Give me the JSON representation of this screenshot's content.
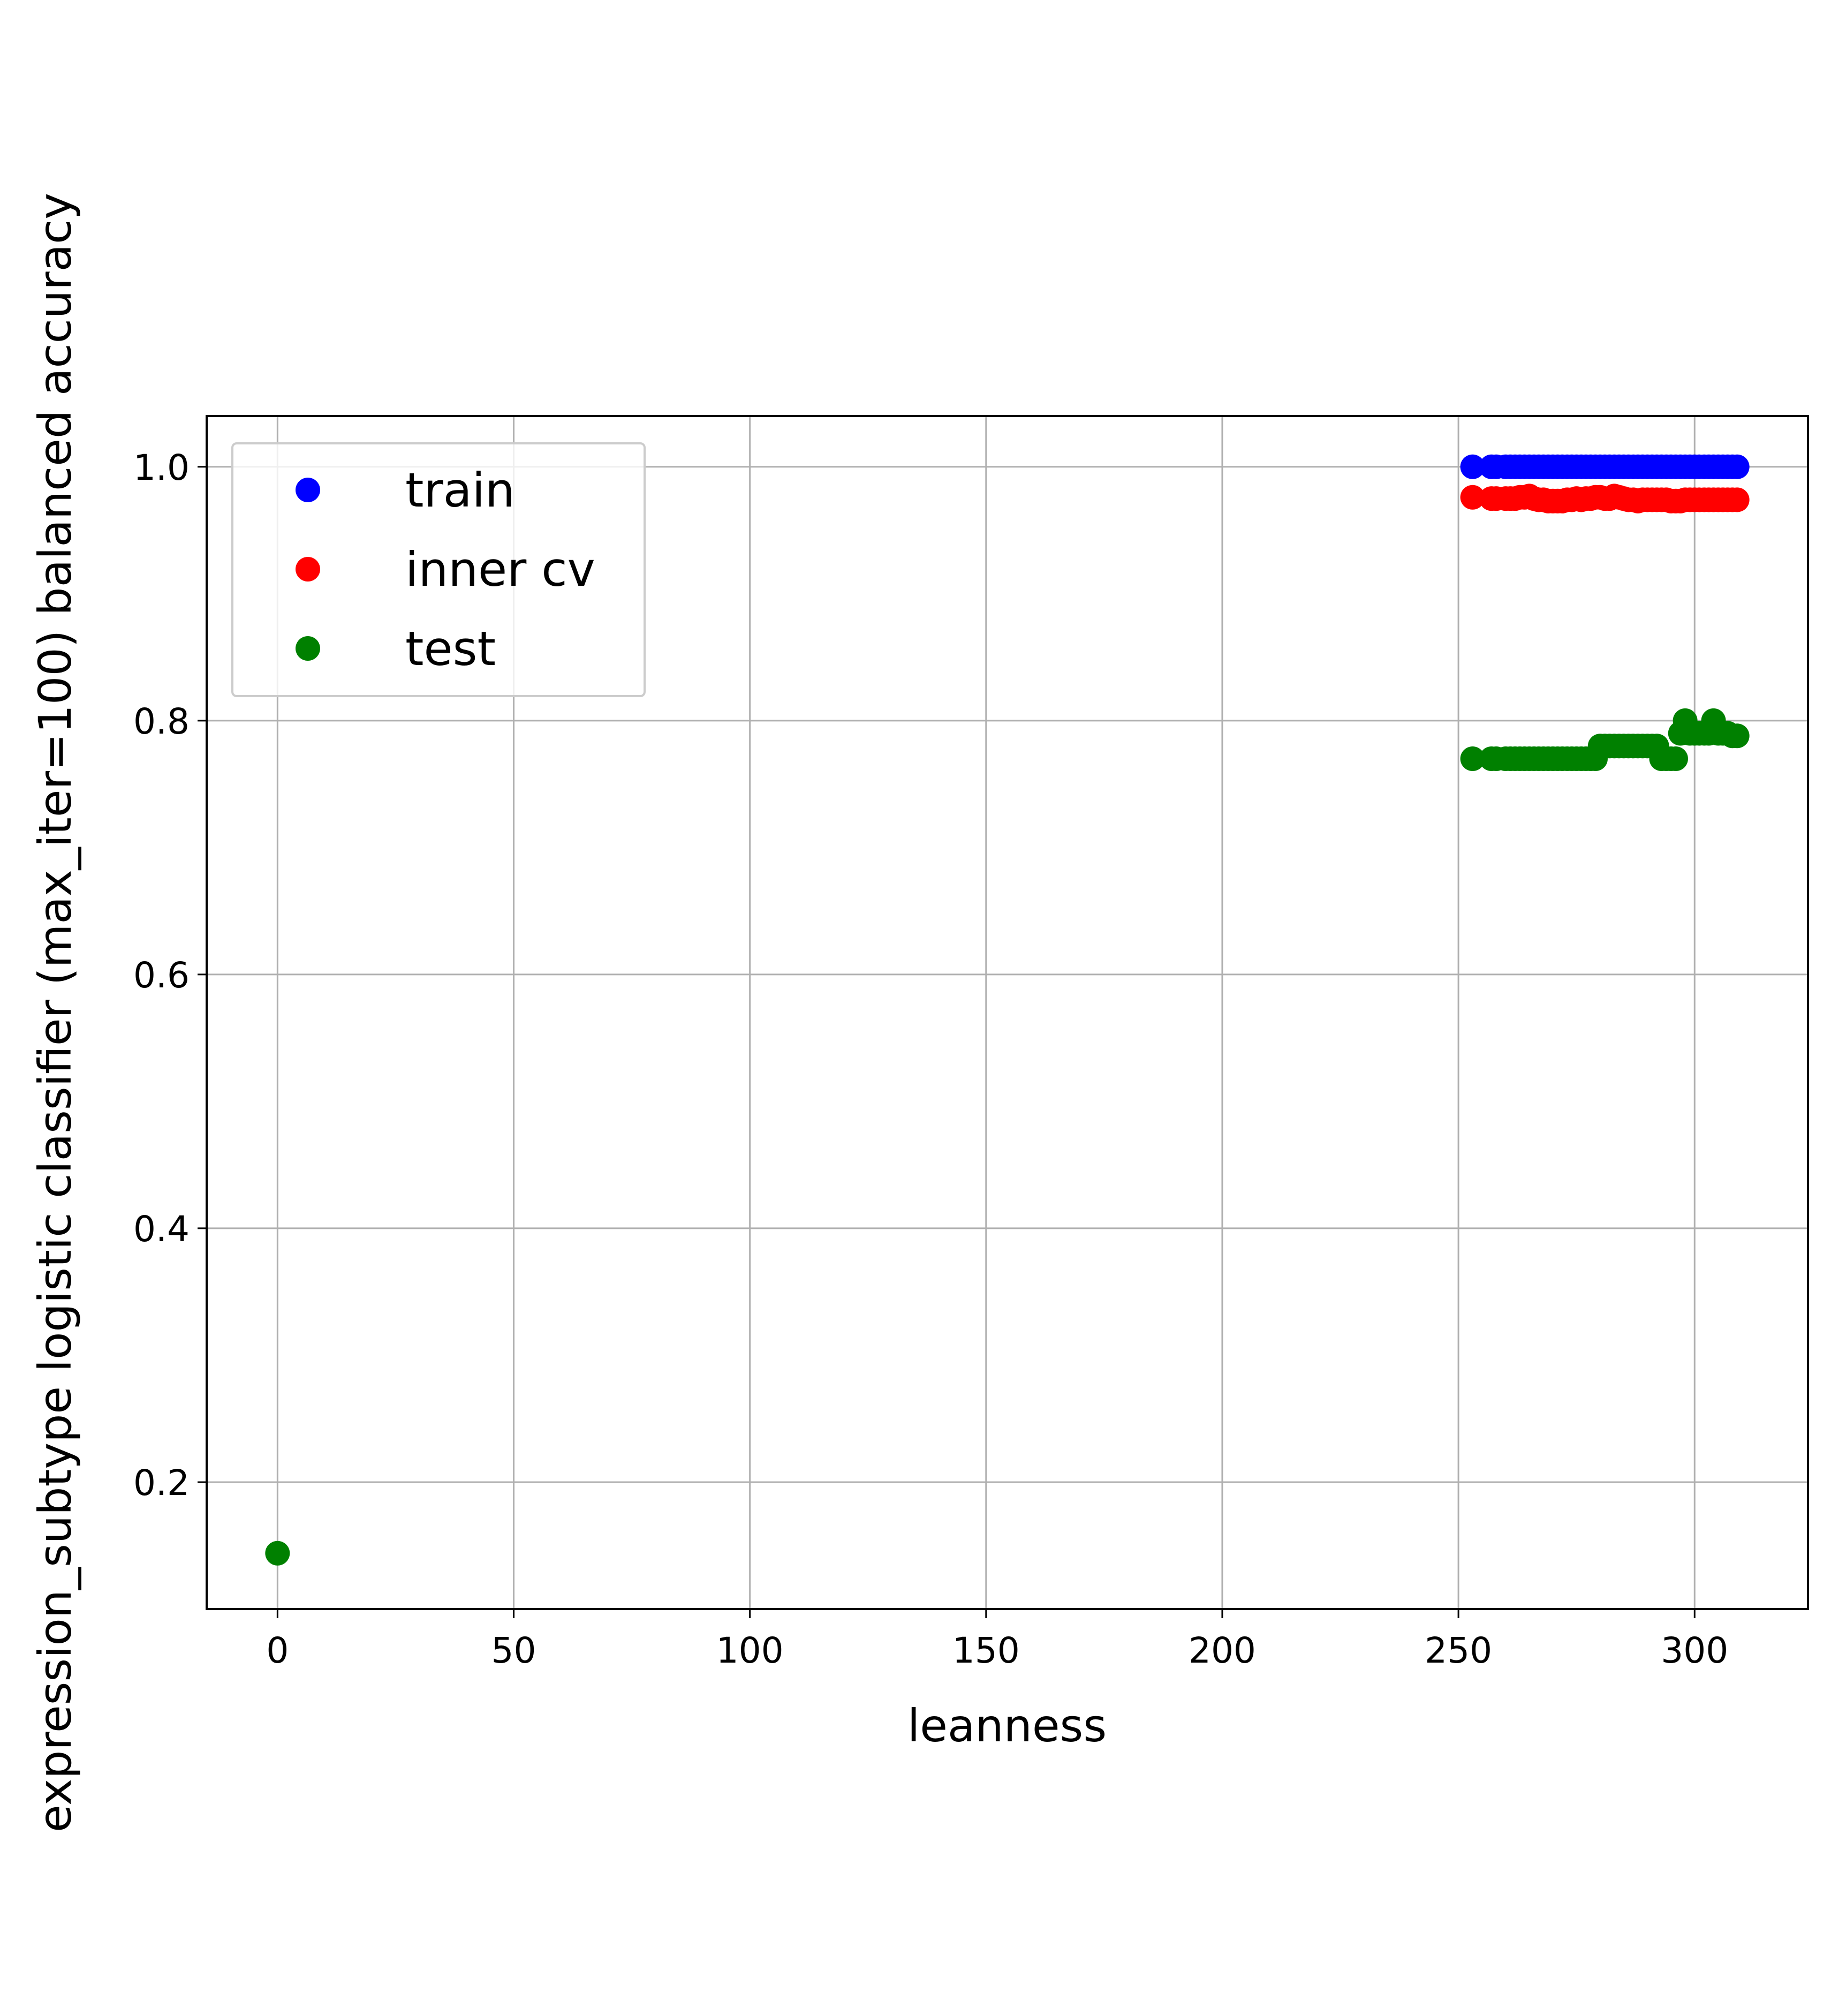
{
  "chart_data": {
    "type": "scatter",
    "title": "",
    "xlabel": "leanness",
    "ylabel": "expression_subtype logistic classifier (max_iter=100) balanced accuracy",
    "xlim": [
      -15,
      324
    ],
    "ylim": [
      0.1,
      1.04
    ],
    "xticks": [
      0,
      50,
      100,
      150,
      200,
      250,
      300
    ],
    "yticks": [
      0.2,
      0.4,
      0.6,
      0.8,
      1.0
    ],
    "xtick_labels": [
      "0",
      "50",
      "100",
      "150",
      "200",
      "250",
      "300"
    ],
    "ytick_labels": [
      "0.2",
      "0.4",
      "0.6",
      "0.8",
      "1.0"
    ],
    "grid": true,
    "legend_position": "upper left",
    "series": [
      {
        "name": "train",
        "color": "#0000ff",
        "x": [
          253,
          257,
          258,
          260,
          261,
          262,
          263,
          264,
          265,
          266,
          267,
          268,
          269,
          270,
          271,
          272,
          273,
          274,
          275,
          276,
          277,
          278,
          279,
          280,
          281,
          282,
          283,
          284,
          285,
          286,
          287,
          288,
          289,
          290,
          291,
          292,
          293,
          294,
          295,
          296,
          297,
          298,
          299,
          300,
          301,
          302,
          303,
          304,
          305,
          306,
          307,
          308,
          309
        ],
        "y": [
          1.0,
          1.0,
          1.0,
          1.0,
          1.0,
          1.0,
          1.0,
          1.0,
          1.0,
          1.0,
          1.0,
          1.0,
          1.0,
          1.0,
          1.0,
          1.0,
          1.0,
          1.0,
          1.0,
          1.0,
          1.0,
          1.0,
          1.0,
          1.0,
          1.0,
          1.0,
          1.0,
          1.0,
          1.0,
          1.0,
          1.0,
          1.0,
          1.0,
          1.0,
          1.0,
          1.0,
          1.0,
          1.0,
          1.0,
          1.0,
          1.0,
          1.0,
          1.0,
          1.0,
          1.0,
          1.0,
          1.0,
          1.0,
          1.0,
          1.0,
          1.0,
          1.0,
          1.0
        ]
      },
      {
        "name": "inner cv",
        "color": "#ff0000",
        "x": [
          253,
          257,
          258,
          260,
          261,
          262,
          263,
          264,
          265,
          266,
          267,
          268,
          269,
          270,
          271,
          272,
          273,
          274,
          275,
          276,
          277,
          278,
          279,
          280,
          281,
          282,
          283,
          284,
          285,
          286,
          287,
          288,
          289,
          290,
          291,
          292,
          293,
          294,
          295,
          296,
          297,
          298,
          299,
          300,
          301,
          302,
          303,
          304,
          305,
          306,
          307,
          308,
          309
        ],
        "y": [
          0.976,
          0.975,
          0.975,
          0.975,
          0.975,
          0.975,
          0.976,
          0.976,
          0.977,
          0.975,
          0.974,
          0.974,
          0.973,
          0.973,
          0.973,
          0.973,
          0.974,
          0.974,
          0.975,
          0.974,
          0.975,
          0.975,
          0.976,
          0.976,
          0.975,
          0.975,
          0.977,
          0.976,
          0.975,
          0.974,
          0.974,
          0.973,
          0.974,
          0.974,
          0.974,
          0.974,
          0.974,
          0.974,
          0.973,
          0.973,
          0.973,
          0.974,
          0.974,
          0.974,
          0.974,
          0.974,
          0.974,
          0.974,
          0.974,
          0.974,
          0.974,
          0.974,
          0.974
        ]
      },
      {
        "name": "test",
        "color": "#008000",
        "x": [
          0,
          253,
          257,
          258,
          260,
          261,
          262,
          263,
          264,
          265,
          266,
          267,
          268,
          269,
          270,
          271,
          272,
          273,
          274,
          275,
          276,
          277,
          278,
          279,
          280,
          281,
          282,
          283,
          284,
          285,
          286,
          287,
          288,
          289,
          290,
          291,
          292,
          293,
          294,
          295,
          296,
          297,
          298,
          299,
          300,
          301,
          302,
          303,
          304,
          305,
          306,
          307,
          308,
          309
        ],
        "y": [
          0.144,
          0.77,
          0.77,
          0.77,
          0.77,
          0.77,
          0.77,
          0.77,
          0.77,
          0.77,
          0.77,
          0.77,
          0.77,
          0.77,
          0.77,
          0.77,
          0.77,
          0.77,
          0.77,
          0.77,
          0.77,
          0.77,
          0.77,
          0.77,
          0.78,
          0.78,
          0.78,
          0.78,
          0.78,
          0.78,
          0.78,
          0.78,
          0.78,
          0.78,
          0.78,
          0.78,
          0.78,
          0.77,
          0.77,
          0.77,
          0.77,
          0.79,
          0.8,
          0.79,
          0.79,
          0.79,
          0.79,
          0.79,
          0.8,
          0.79,
          0.79,
          0.79,
          0.788,
          0.788
        ]
      }
    ]
  }
}
